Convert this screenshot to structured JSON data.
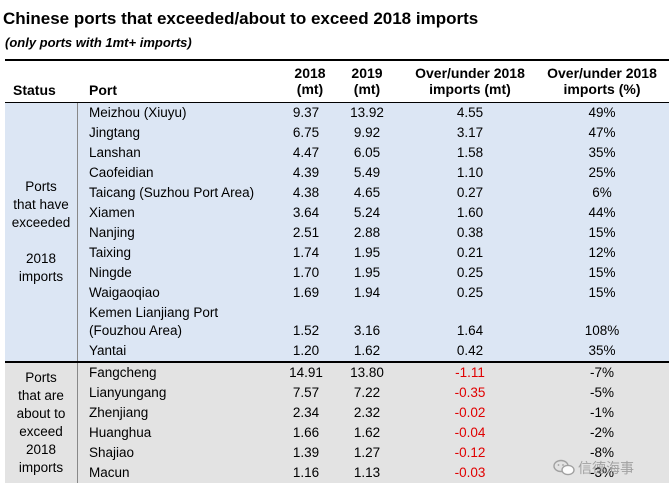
{
  "title": "Chinese ports that exceeded/about to exceed 2018 imports",
  "subtitle": "(only ports with 1mt+ imports)",
  "headers": {
    "status": "Status",
    "port": "Port",
    "y2018": "2018\n(mt)",
    "y2019": "2019\n(mt)",
    "over_mt": "Over/under 2018\nimports (mt)",
    "over_pct": "Over/under 2018\nimports (%)"
  },
  "groups": [
    {
      "status": "Ports\nthat have\nexceeded\n\n2018\nimports",
      "rows": [
        {
          "port": "Meizhou (Xiuyu)",
          "y2018": "9.37",
          "y2019": "13.92",
          "over_mt": "4.55",
          "over_pct": "49%"
        },
        {
          "port": "Jingtang",
          "y2018": "6.75",
          "y2019": "9.92",
          "over_mt": "3.17",
          "over_pct": "47%"
        },
        {
          "port": "Lanshan",
          "y2018": "4.47",
          "y2019": "6.05",
          "over_mt": "1.58",
          "over_pct": "35%"
        },
        {
          "port": "Caofeidian",
          "y2018": "4.39",
          "y2019": "5.49",
          "over_mt": "1.10",
          "over_pct": "25%"
        },
        {
          "port": "Taicang (Suzhou Port Area)",
          "y2018": "4.38",
          "y2019": "4.65",
          "over_mt": "0.27",
          "over_pct": "6%"
        },
        {
          "port": "Xiamen",
          "y2018": "3.64",
          "y2019": "5.24",
          "over_mt": "1.60",
          "over_pct": "44%"
        },
        {
          "port": "Nanjing",
          "y2018": "2.51",
          "y2019": "2.88",
          "over_mt": "0.38",
          "over_pct": "15%"
        },
        {
          "port": "Taixing",
          "y2018": "1.74",
          "y2019": "1.95",
          "over_mt": "0.21",
          "over_pct": "12%"
        },
        {
          "port": "Ningde",
          "y2018": "1.70",
          "y2019": "1.95",
          "over_mt": "0.25",
          "over_pct": "15%"
        },
        {
          "port": "Waigaoqiao",
          "y2018": "1.69",
          "y2019": "1.94",
          "over_mt": "0.25",
          "over_pct": "15%"
        },
        {
          "port": "Kemen Lianjiang Port\n(Fouzhou Area)",
          "y2018": "1.52",
          "y2019": "3.16",
          "over_mt": "1.64",
          "over_pct": "108%",
          "tall": true
        },
        {
          "port": "Yantai",
          "y2018": "1.20",
          "y2019": "1.62",
          "over_mt": "0.42",
          "over_pct": "35%"
        }
      ]
    },
    {
      "status": "Ports\nthat are\nabout to\nexceed\n2018\nimports",
      "rows": [
        {
          "port": "Fangcheng",
          "y2018": "14.91",
          "y2019": "13.80",
          "over_mt": "-1.11",
          "over_pct": "-7%"
        },
        {
          "port": "Lianyungang",
          "y2018": "7.57",
          "y2019": "7.22",
          "over_mt": "-0.35",
          "over_pct": "-5%"
        },
        {
          "port": "Zhenjiang",
          "y2018": "2.34",
          "y2019": "2.32",
          "over_mt": "-0.02",
          "over_pct": "-1%"
        },
        {
          "port": "Huanghua",
          "y2018": "1.66",
          "y2019": "1.62",
          "over_mt": "-0.04",
          "over_pct": "-2%"
        },
        {
          "port": "Shajiao",
          "y2018": "1.39",
          "y2019": "1.27",
          "over_mt": "-0.12",
          "over_pct": "-8%"
        },
        {
          "port": "Macun",
          "y2018": "1.16",
          "y2019": "1.13",
          "over_mt": "-0.03",
          "over_pct": "-3%"
        }
      ]
    }
  ],
  "watermark": "信德海事",
  "colors": {
    "group1_bg": "#dce6f4",
    "group2_bg": "#e3e3e3",
    "negative": "#e00000"
  }
}
